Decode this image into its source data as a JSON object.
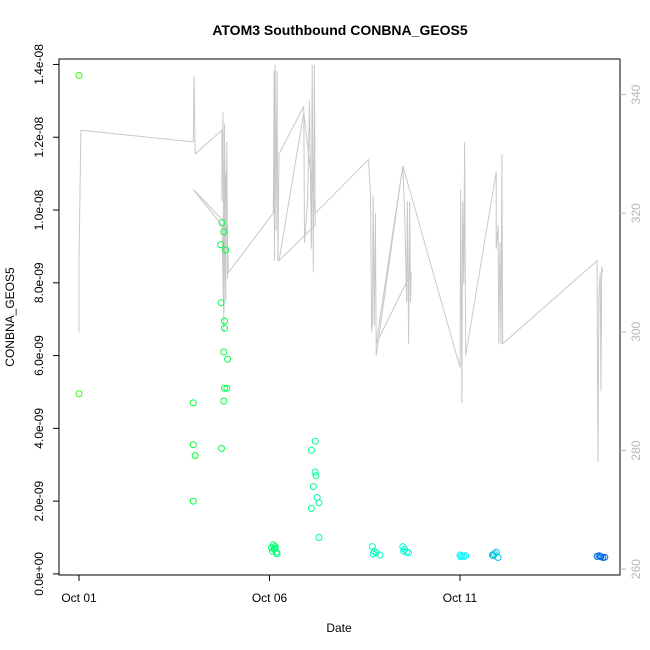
{
  "chart_data": {
    "type": "scatter",
    "title": "ATOM3 Southbound CONBNA_GEOS5",
    "xlabel": "Date",
    "ylabel": "CONBNA_GEOS5",
    "x_ticks": [
      "Oct 01",
      "Oct 06",
      "Oct 11"
    ],
    "x_tick_days": [
      1,
      6,
      11
    ],
    "xlim": [
      1,
      15.2
    ],
    "ylim": [
      -3e-11,
      1.415e-08
    ],
    "y_ticks": [
      "0.0e+00",
      "2.0e-09",
      "4.0e-09",
      "6.0e-09",
      "8.0e-09",
      "1.0e-08",
      "1.2e-08",
      "1.4e-08"
    ],
    "y_tick_values": [
      0,
      2e-09,
      4e-09,
      6e-09,
      8e-09,
      1e-08,
      1.2e-08,
      1.4e-08
    ],
    "y2_ticks": [
      "260",
      "280",
      "300",
      "320",
      "340"
    ],
    "y2_tick_values": [
      260,
      280,
      300,
      320,
      340
    ],
    "y2lim": [
      259,
      346
    ],
    "grid": false,
    "legend": "none",
    "line_color": "#c8c8c8",
    "scatter_points": [
      [
        1.0,
        1.37e-08
      ],
      [
        1.0,
        4.95e-09
      ],
      [
        4.0,
        4.7e-09
      ],
      [
        4.0,
        3.55e-09
      ],
      [
        4.05,
        3.25e-09
      ],
      [
        4.0,
        2e-09
      ],
      [
        4.75,
        9.65e-09
      ],
      [
        4.8,
        9.4e-09
      ],
      [
        4.72,
        9.05e-09
      ],
      [
        4.85,
        8.9e-09
      ],
      [
        4.73,
        7.45e-09
      ],
      [
        4.82,
        6.95e-09
      ],
      [
        4.82,
        6.75e-09
      ],
      [
        4.8,
        6.1e-09
      ],
      [
        4.9,
        5.9e-09
      ],
      [
        4.82,
        5.1e-09
      ],
      [
        4.88,
        5.1e-09
      ],
      [
        4.8,
        4.75e-09
      ],
      [
        4.74,
        3.45e-09
      ],
      [
        7.2,
        3.65e-09
      ],
      [
        7.1,
        3.4e-09
      ],
      [
        7.2,
        2.8e-09
      ],
      [
        7.22,
        2.7e-09
      ],
      [
        7.15,
        2.4e-09
      ],
      [
        7.25,
        2.1e-09
      ],
      [
        7.3,
        1.95e-09
      ],
      [
        7.1,
        1.8e-09
      ],
      [
        7.3,
        1e-09
      ],
      [
        6.1,
        8e-10
      ],
      [
        6.15,
        7.5e-10
      ],
      [
        6.05,
        7.2e-10
      ],
      [
        6.12,
        6.8e-10
      ],
      [
        6.08,
        6.2e-10
      ],
      [
        6.18,
        6e-10
      ],
      [
        6.2,
        5.5e-10
      ],
      [
        6.14,
        7e-10
      ],
      [
        8.7,
        7.5e-10
      ],
      [
        8.75,
        6.2e-10
      ],
      [
        8.8,
        5.8e-10
      ],
      [
        8.72,
        5.5e-10
      ],
      [
        8.9,
        5.2e-10
      ],
      [
        9.5,
        7.5e-10
      ],
      [
        9.55,
        6.8e-10
      ],
      [
        9.6,
        6e-10
      ],
      [
        9.65,
        5.8e-10
      ],
      [
        9.52,
        6.2e-10
      ],
      [
        11.0,
        5.2e-10
      ],
      [
        11.05,
        5e-10
      ],
      [
        11.1,
        4.8e-10
      ],
      [
        11.02,
        4.7e-10
      ],
      [
        11.15,
        5e-10
      ],
      [
        11.85,
        5.2e-10
      ],
      [
        11.9,
        5.5e-10
      ],
      [
        11.95,
        6e-10
      ],
      [
        12.0,
        4.5e-10
      ],
      [
        11.88,
        5e-10
      ],
      [
        14.6,
        4.8e-10
      ],
      [
        14.65,
        5e-10
      ],
      [
        14.7,
        4.7e-10
      ],
      [
        14.75,
        4.5e-10
      ],
      [
        14.8,
        4.6e-10
      ],
      [
        14.68,
        4.8e-10
      ]
    ],
    "line_points": [
      [
        1.0,
        300
      ],
      [
        1.0,
        312
      ],
      [
        1.05,
        334
      ],
      [
        4.0,
        332
      ],
      [
        4.02,
        343
      ],
      [
        4.05,
        330
      ],
      [
        4.75,
        334
      ],
      [
        4.75,
        322
      ],
      [
        4.78,
        337
      ],
      [
        4.8,
        300
      ],
      [
        4.82,
        335
      ],
      [
        4.85,
        305
      ],
      [
        4.88,
        332
      ],
      [
        4.9,
        309
      ],
      [
        4.9,
        318
      ],
      [
        4.0,
        324
      ],
      [
        4.75,
        318
      ],
      [
        4.8,
        302
      ],
      [
        4.85,
        327
      ],
      [
        4.92,
        310
      ],
      [
        6.1,
        320
      ],
      [
        6.12,
        344
      ],
      [
        6.13,
        312
      ],
      [
        6.15,
        345
      ],
      [
        6.17,
        317
      ],
      [
        6.2,
        344
      ],
      [
        6.22,
        312
      ],
      [
        6.25,
        330
      ],
      [
        6.9,
        338
      ],
      [
        6.92,
        315
      ],
      [
        7.0,
        322
      ],
      [
        7.05,
        339
      ],
      [
        7.1,
        314
      ],
      [
        7.12,
        345
      ],
      [
        7.15,
        310
      ],
      [
        7.18,
        345
      ],
      [
        7.2,
        318
      ],
      [
        6.25,
        312
      ],
      [
        6.9,
        337
      ],
      [
        7.2,
        320
      ],
      [
        8.6,
        329
      ],
      [
        8.65,
        323
      ],
      [
        8.68,
        300
      ],
      [
        8.7,
        301
      ],
      [
        8.72,
        323
      ],
      [
        8.75,
        301
      ],
      [
        8.78,
        320
      ],
      [
        8.8,
        296
      ],
      [
        9.5,
        328
      ],
      [
        9.55,
        320
      ],
      [
        9.6,
        305
      ],
      [
        9.62,
        322
      ],
      [
        9.65,
        298
      ],
      [
        9.68,
        322
      ],
      [
        9.7,
        305
      ],
      [
        9.72,
        310
      ],
      [
        8.8,
        298
      ],
      [
        9.5,
        328
      ],
      [
        11.0,
        294
      ],
      [
        11.02,
        324
      ],
      [
        11.05,
        288
      ],
      [
        11.07,
        322
      ],
      [
        11.1,
        308
      ],
      [
        11.12,
        332
      ],
      [
        11.15,
        296
      ],
      [
        11.95,
        327
      ],
      [
        11.95,
        314
      ],
      [
        12.0,
        318
      ],
      [
        12.02,
        298
      ],
      [
        12.05,
        315
      ],
      [
        12.08,
        298
      ],
      [
        12.1,
        330
      ],
      [
        12.12,
        298
      ],
      [
        14.6,
        312
      ],
      [
        14.62,
        278
      ],
      [
        14.65,
        306
      ],
      [
        14.68,
        310
      ],
      [
        14.7,
        290
      ],
      [
        14.72,
        311
      ],
      [
        14.75,
        310
      ]
    ]
  }
}
